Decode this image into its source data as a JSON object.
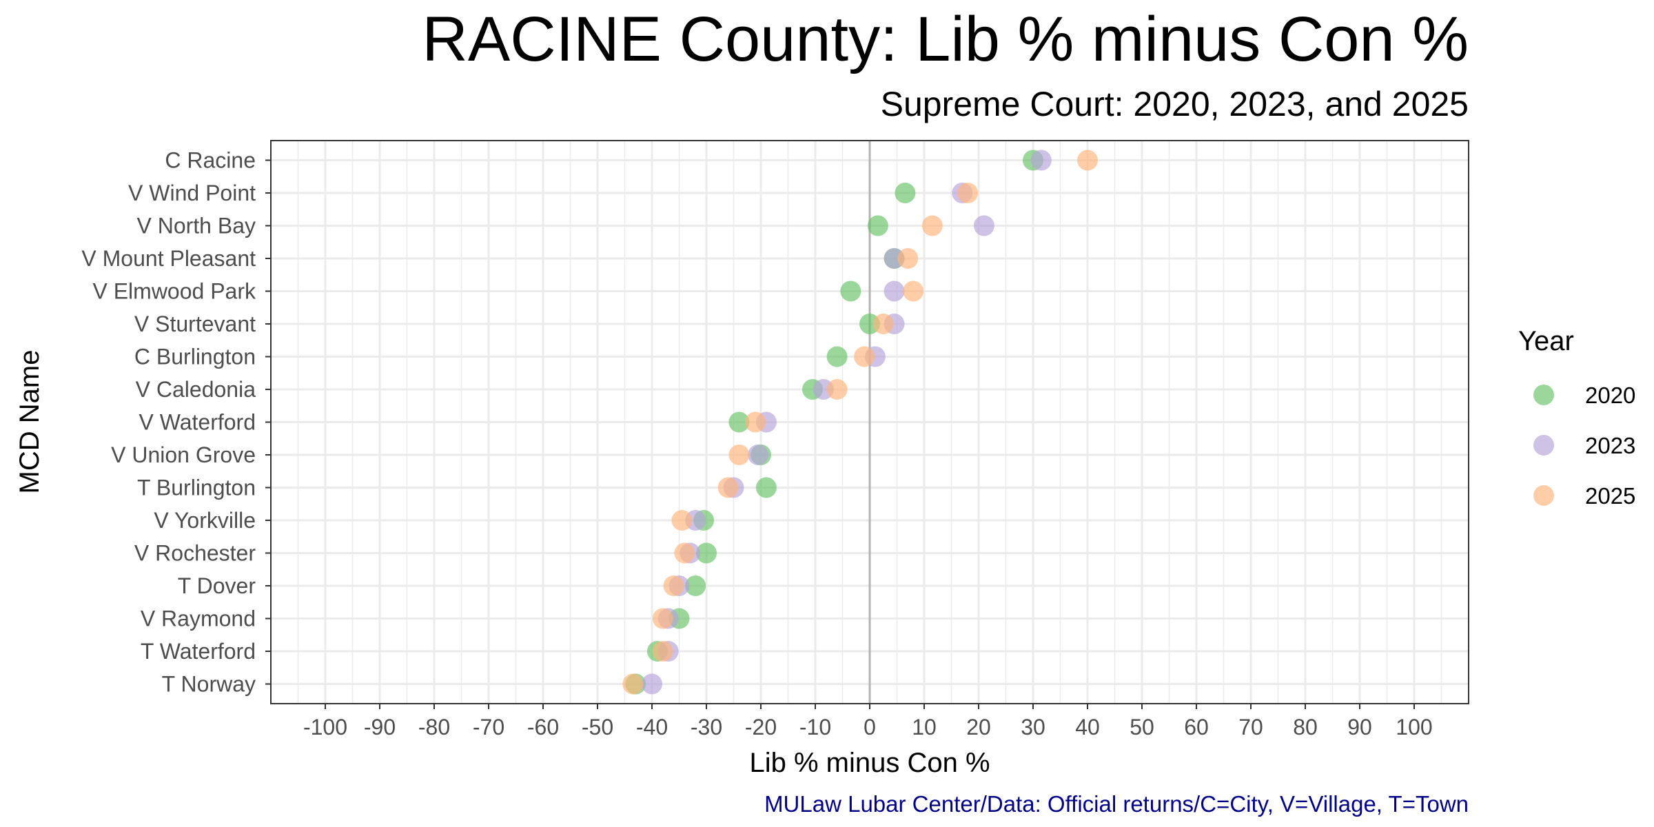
{
  "chart_data": {
    "type": "scatter",
    "title": "RACINE County: Lib % minus Con %",
    "subtitle": "Supreme Court: 2020, 2023, and 2025",
    "xlabel": "Lib % minus Con %",
    "ylabel": "MCD Name",
    "xlim": [
      -110,
      110
    ],
    "x_ticks": [
      -100,
      -90,
      -80,
      -70,
      -60,
      -50,
      -40,
      -30,
      -20,
      -10,
      0,
      10,
      20,
      30,
      40,
      50,
      60,
      70,
      80,
      90,
      100
    ],
    "grid": true,
    "zero_line": 0,
    "legend": {
      "title": "Year",
      "placement": "right"
    },
    "categories": [
      "C Racine",
      "V Wind Point",
      "V North Bay",
      "V Mount Pleasant",
      "V Elmwood Park",
      "V Sturtevant",
      "C Burlington",
      "V Caledonia",
      "V Waterford",
      "V Union Grove",
      "T Burlington",
      "V Yorkville",
      "V Rochester",
      "T Dover",
      "V Raymond",
      "T Waterford",
      "T Norway"
    ],
    "series": [
      {
        "name": "2020",
        "color": "#66c266",
        "values": [
          30,
          6.5,
          1.5,
          4.5,
          -3.5,
          0,
          -6,
          -10.5,
          -24,
          -20,
          -19,
          -30.5,
          -30,
          -32,
          -35,
          -39,
          -43
        ]
      },
      {
        "name": "2023",
        "color": "#b3a3d9",
        "values": [
          31.5,
          17,
          21,
          4.5,
          4.5,
          4.5,
          1,
          -8.5,
          -19,
          -20.5,
          -25,
          -32,
          -33,
          -35,
          -37,
          -37,
          -40
        ]
      },
      {
        "name": "2025",
        "color": "#ffb37a",
        "values": [
          40,
          18,
          11.5,
          7,
          8,
          2.5,
          -1,
          -6,
          -21,
          -24,
          -26,
          -34.5,
          -34,
          -36,
          -38,
          -38,
          -43.5
        ]
      }
    ]
  },
  "caption": {
    "text": "MULaw Lubar Center/Data: Official returns/C=City, V=Village, T=Town",
    "color": "#00008b"
  }
}
